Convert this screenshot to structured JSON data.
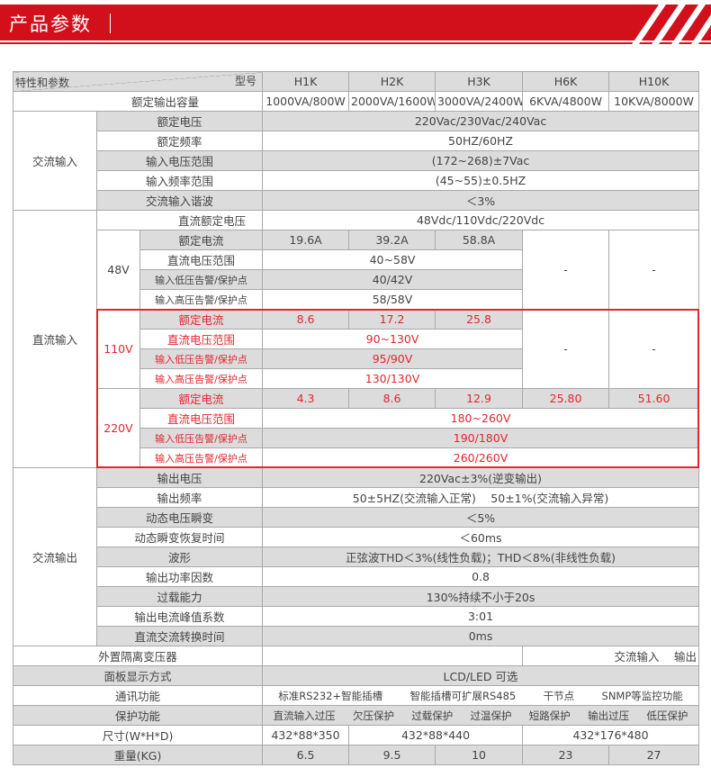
{
  "banner": {
    "title": "产品参数",
    "accent": "#d2101c"
  },
  "header": {
    "corner_left": "特性和参数",
    "corner_right": "型号",
    "models": [
      "H1K",
      "H2K",
      "H3K",
      "H6K",
      "H10K"
    ]
  },
  "rated_capacity": {
    "label": "额定输出容量",
    "values": [
      "1000VA/800W",
      "2000VA/1600W",
      "3000VA/2400W",
      "6KVA/4800W",
      "10KVA/8000W"
    ]
  },
  "ac_input": {
    "label": "交流输入",
    "rows": [
      {
        "label": "额定电压",
        "value": "220Vac/230Vac/240Vac"
      },
      {
        "label": "额定频率",
        "value": "50HZ/60HZ"
      },
      {
        "label": "输入电压范围",
        "value": "(172~268)±7Vac"
      },
      {
        "label": "输入频率范围",
        "value": "(45~55)±0.5HZ"
      },
      {
        "label": "交流输入谐波",
        "value": "＜3%"
      }
    ]
  },
  "dc_input": {
    "label": "直流输入",
    "rated_voltage_label": "直流额定电压",
    "rated_voltage": "48Vdc/110Vdc/220Vdc",
    "groups": [
      {
        "voltage": "48V",
        "current_label": "额定电流",
        "currents": [
          "19.6A",
          "39.2A",
          "58.8A"
        ],
        "na": [
          "-",
          "-"
        ],
        "range_label": "直流电压范围",
        "range": "40~58V",
        "low_label": "输入低压告警/保护点",
        "low": "40/42V",
        "high_label": "输入高压告警/保护点",
        "high": "58/58V"
      },
      {
        "voltage": "110V",
        "current_label": "额定电流",
        "currents": [
          "8.6",
          "17.2",
          "25.8"
        ],
        "na": [
          "-",
          "-"
        ],
        "range_label": "直流电压范围",
        "range": "90~130V",
        "low_label": "输入低压告警/保护点",
        "low": "95/90V",
        "high_label": "输入高压告警/保护点",
        "high": "130/130V"
      },
      {
        "voltage": "220V",
        "current_label": "额定电流",
        "currents": [
          "4.3",
          "8.6",
          "12.9",
          "25.80",
          "51.60"
        ],
        "range_label": "直流电压范围",
        "range": "180~260V",
        "low_label": "输入低压告警/保护点",
        "low": "190/180V",
        "high_label": "输入高压告警/保护点",
        "high": "260/260V"
      }
    ],
    "highlight_color": "#e3262f"
  },
  "ac_output": {
    "label": "交流输出",
    "rows": [
      {
        "label": "输出电压",
        "value": "220Vac±3%(逆变输出)"
      },
      {
        "label": "输出频率",
        "value": "50±5HZ(交流输入正常)　 50±1%(交流输入异常)"
      },
      {
        "label": "动态电压瞬变",
        "value": "＜5%"
      },
      {
        "label": "动态瞬变恢复时间",
        "value": "＜60ms"
      },
      {
        "label": "波形",
        "value": "正弦波THD＜3%(线性负载)；THD＜8%(非线性负载)"
      },
      {
        "label": "输出功率因数",
        "value": "0.8"
      },
      {
        "label": "过载能力",
        "value": "130%持续不小于20s"
      },
      {
        "label": "输出电流峰值系数",
        "value": "3:01"
      },
      {
        "label": "直流交流转换时间",
        "value": "0ms"
      }
    ]
  },
  "transformer": {
    "label": "外置隔离变压器",
    "value": "交流输入　 输出"
  },
  "display": {
    "label": "面板显示方式",
    "value": "LCD/LED 可选"
  },
  "comm": {
    "label": "通讯功能",
    "items": [
      "标准RS232+智能插槽",
      "智能插槽可扩展RS485",
      "干节点",
      "SNMP等监控功能"
    ]
  },
  "protection": {
    "label": "保护功能",
    "items": [
      "直流输入过压",
      "欠压保护",
      "过载保护",
      "过温保护",
      "短路保护",
      "输出过压",
      "低压保护"
    ]
  },
  "size": {
    "label": "尺寸(W*H*D)",
    "values": [
      "432*88*350",
      "432*88*440",
      "432*176*480"
    ]
  },
  "weight": {
    "label": "重量(KG)",
    "values": [
      "6.5",
      "9.5",
      "10",
      "23",
      "27"
    ]
  }
}
